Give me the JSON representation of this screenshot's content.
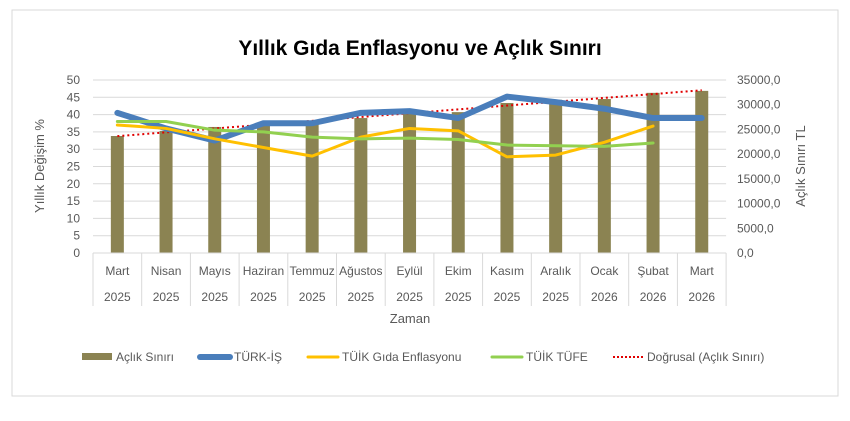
{
  "chart_data": {
    "type": "bar+line",
    "title": "Yıllık Gıda Enflasyonu ve Açlık Sınırı",
    "xlabel": "Zaman",
    "ylabel_left": "Yıllık Değişim %",
    "ylabel_right": "Açlık Sınırı TL",
    "ylim_left": [
      0,
      50
    ],
    "ylim_right": [
      0,
      35000
    ],
    "yticks_left": [
      "0",
      "5",
      "10",
      "15",
      "20",
      "25",
      "30",
      "35",
      "40",
      "45",
      "50"
    ],
    "yticks_right": [
      "0,0",
      "5000,0",
      "10000,0",
      "15000,0",
      "20000,0",
      "25000,0",
      "30000,0",
      "35000,0"
    ],
    "grid": true,
    "legend_position": "bottom",
    "categories": [
      [
        "Mart",
        "2025"
      ],
      [
        "Nisan",
        "2025"
      ],
      [
        "Mayıs",
        "2025"
      ],
      [
        "Haziran",
        "2025"
      ],
      [
        "Temmuz",
        "2025"
      ],
      [
        "Ağustos",
        "2025"
      ],
      [
        "Eylül",
        "2025"
      ],
      [
        "Ekim",
        "2025"
      ],
      [
        "Kasım",
        "2025"
      ],
      [
        "Aralık",
        "2025"
      ],
      [
        "Ocak",
        "2026"
      ],
      [
        "Şubat",
        "2026"
      ],
      [
        "Mart",
        "2026"
      ]
    ],
    "bars": {
      "name": "Açlık Sınırı",
      "axis": "right",
      "color": "#8B8352",
      "values": [
        23670,
        24700,
        25500,
        25900,
        26100,
        27300,
        28300,
        28500,
        30350,
        31000,
        31150,
        32400,
        32800
      ]
    },
    "series": [
      {
        "name": "TÜRK-İŞ",
        "axis": "left",
        "color": "#4A7EBB",
        "width": 6,
        "values": [
          40.5,
          36,
          32.5,
          37.5,
          37.5,
          40.5,
          41,
          39,
          45.2,
          43.6,
          41.7,
          39,
          39
        ]
      },
      {
        "name": "TÜİK Gıda Enflasyonu",
        "axis": "left",
        "color": "#FFC000",
        "width": 3,
        "values": [
          37,
          36,
          33,
          30.5,
          28,
          33.5,
          36,
          35.3,
          27.8,
          28.3,
          32,
          36.7,
          null
        ]
      },
      {
        "name": "TÜİK TÜFE",
        "axis": "left",
        "color": "#92D050",
        "width": 3,
        "values": [
          38,
          38,
          35.5,
          35,
          33.5,
          33,
          33.2,
          32.8,
          31.2,
          31,
          30.8,
          31.8,
          null
        ]
      }
    ],
    "trendline": {
      "name": "Doğrusal (Açlık Sınırı)",
      "of": "Açlık Sınırı",
      "type": "linear",
      "color": "#E00000",
      "style": "dotted"
    }
  }
}
